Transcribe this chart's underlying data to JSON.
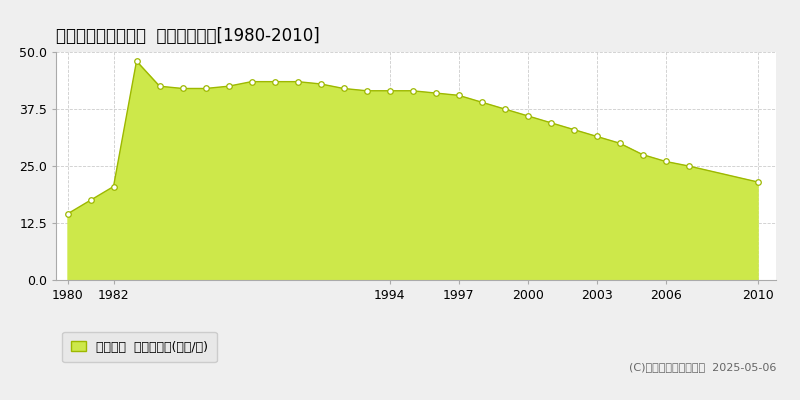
{
  "title": "生駒郡斑鳩町龍田北  公示地価推移[1980-2010]",
  "years": [
    1980,
    1981,
    1982,
    1983,
    1984,
    1985,
    1986,
    1987,
    1988,
    1989,
    1990,
    1991,
    1992,
    1993,
    1994,
    1995,
    1996,
    1997,
    1998,
    1999,
    2000,
    2001,
    2002,
    2003,
    2004,
    2005,
    2006,
    2007,
    2010
  ],
  "values": [
    14.5,
    17.5,
    20.5,
    48.0,
    42.5,
    42.0,
    42.0,
    42.5,
    43.5,
    43.5,
    43.5,
    43.0,
    42.0,
    41.5,
    41.5,
    41.5,
    41.0,
    40.5,
    39.0,
    37.5,
    36.0,
    34.5,
    33.0,
    31.5,
    30.0,
    27.5,
    26.0,
    25.0,
    21.5
  ],
  "fill_color": "#cde84a",
  "line_color": "#9db800",
  "marker_facecolor": "#ffffff",
  "marker_edgecolor": "#9db800",
  "background_color": "#efefef",
  "plot_bg_color": "#ffffff",
  "grid_color": "#cccccc",
  "xlim": [
    1979.5,
    2010.8
  ],
  "ylim": [
    0,
    50
  ],
  "yticks": [
    0,
    12.5,
    25,
    37.5,
    50
  ],
  "xtick_positions": [
    1980,
    1982,
    1994,
    1997,
    2000,
    2003,
    2006,
    2010
  ],
  "xtick_labels": [
    "1980",
    "1982",
    "1994",
    "1997",
    "2000",
    "2003",
    "2006",
    "2010"
  ],
  "legend_label": "公示地価  平均坊単価(万円/坊)",
  "copyright": "(C)土地価格ドットコム  2025-05-06",
  "title_fontsize": 12,
  "axis_fontsize": 9,
  "legend_fontsize": 9,
  "copyright_fontsize": 8
}
